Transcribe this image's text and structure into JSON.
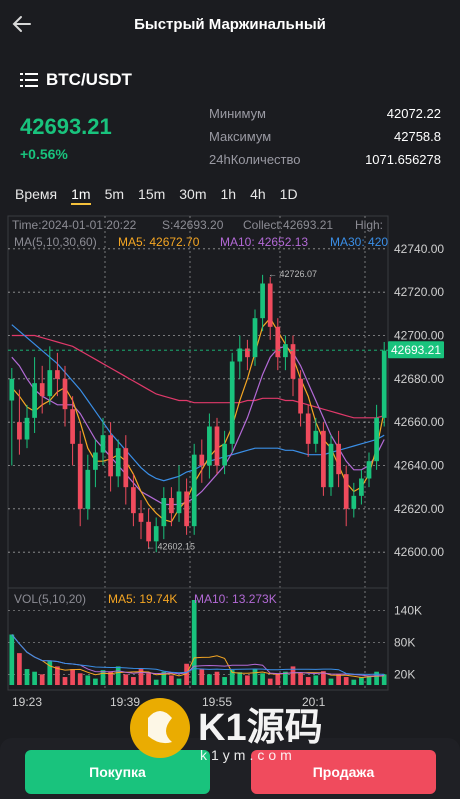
{
  "header": {
    "title": "Быстрый Маржинальный"
  },
  "pair": {
    "name": "BTC/USDT"
  },
  "ticker": {
    "price": "42693.21",
    "change": "+0.56%"
  },
  "stats": [
    {
      "label": "Минимум",
      "value": "42072.22"
    },
    {
      "label": "Максимум",
      "value": "42758.8"
    },
    {
      "label": "24hКоличество",
      "value": "1071.656278"
    }
  ],
  "timeframes": {
    "label": "Время",
    "items": [
      "1m",
      "5m",
      "15m",
      "30m",
      "1h",
      "4h",
      "1D"
    ],
    "active": "1m"
  },
  "info": {
    "time": "Time:2024-01-01 20:22",
    "s": "S:42693.20",
    "collect": "Collect:42693.21",
    "high": "High:"
  },
  "ma": {
    "label": "MA(5,10,30,60)",
    "ma5": "MA5: 42672.70",
    "ma10": "MA10: 42652.13",
    "ma30": "MA30: 420"
  },
  "vol": {
    "label": "VOL(5,10,20)",
    "ma5": "MA5: 19.74K",
    "ma10": "MA10: 13.273K"
  },
  "price_axis": [
    "42740.00",
    "42720.00",
    "42700.00",
    "42680.00",
    "42660.00",
    "42640.00",
    "42620.00",
    "42600.00"
  ],
  "vol_axis": [
    "140K",
    "80K",
    "20K"
  ],
  "time_axis": [
    "19:23",
    "19:39",
    "19:55",
    "20:1"
  ],
  "annotations": {
    "high": "42726.07",
    "low": "42602.15",
    "current": "42693.21"
  },
  "buttons": {
    "buy": "Покупка",
    "sell": "Продажа"
  },
  "watermark": {
    "brand": "K1源码",
    "url": "k1ym.com"
  },
  "colors": {
    "up": "#19c37d",
    "down": "#f04b5d",
    "ma5": "#f5a623",
    "ma10": "#b36ad6",
    "ma30": "#3a8ee6",
    "ma60": "#e0396a"
  },
  "chart_data": {
    "type": "candlestick",
    "price_ylim": [
      42595,
      42745
    ],
    "candles": [
      [
        42670,
        42680,
        42640,
        42685
      ],
      [
        42660,
        42652,
        42645,
        42675
      ],
      [
        42652,
        42662,
        42648,
        42668
      ],
      [
        42662,
        42678,
        42655,
        42690
      ],
      [
        42678,
        42672,
        42664,
        42686
      ],
      [
        42672,
        42684,
        42668,
        42695
      ],
      [
        42684,
        42680,
        42672,
        42692
      ],
      [
        42680,
        42666,
        42658,
        42686
      ],
      [
        42666,
        42650,
        42640,
        42672
      ],
      [
        42650,
        42620,
        42612,
        42656
      ],
      [
        42620,
        42638,
        42615,
        42645
      ],
      [
        42638,
        42646,
        42630,
        42652
      ],
      [
        42646,
        42654,
        42640,
        42662
      ],
      [
        42654,
        42635,
        42628,
        42660
      ],
      [
        42635,
        42648,
        42630,
        42652
      ],
      [
        42648,
        42630,
        42622,
        42654
      ],
      [
        42630,
        42618,
        42612,
        42636
      ],
      [
        42618,
        42614,
        42606,
        42624
      ],
      [
        42614,
        42605,
        42602,
        42620
      ],
      [
        42605,
        42612,
        42600,
        42616
      ],
      [
        42612,
        42625,
        42606,
        42630
      ],
      [
        42625,
        42618,
        42612,
        42630
      ],
      [
        42618,
        42628,
        42614,
        42640
      ],
      [
        42628,
        42612,
        42608,
        42634
      ],
      [
        42612,
        42645,
        42608,
        42650
      ],
      [
        42645,
        42640,
        42632,
        42652
      ],
      [
        42640,
        42658,
        42634,
        42664
      ],
      [
        42658,
        42640,
        42636,
        42662
      ],
      [
        42640,
        42650,
        42636,
        42656
      ],
      [
        42650,
        42688,
        42646,
        42692
      ],
      [
        42688,
        42694,
        42680,
        42700
      ],
      [
        42694,
        42690,
        42684,
        42698
      ],
      [
        42690,
        42708,
        42686,
        42712
      ],
      [
        42708,
        42724,
        42702,
        42728
      ],
      [
        42724,
        42704,
        42698,
        42727
      ],
      [
        42704,
        42690,
        42684,
        42708
      ],
      [
        42690,
        42696,
        42684,
        42700
      ],
      [
        42696,
        42680,
        42672,
        42700
      ],
      [
        42680,
        42664,
        42658,
        42684
      ],
      [
        42664,
        42650,
        42644,
        42668
      ],
      [
        42650,
        42656,
        42646,
        42662
      ],
      [
        42656,
        42630,
        42626,
        42660
      ],
      [
        42630,
        42650,
        42626,
        42654
      ],
      [
        42650,
        42636,
        42630,
        42656
      ],
      [
        42636,
        42620,
        42612,
        42640
      ],
      [
        42620,
        42626,
        42616,
        42632
      ],
      [
        42626,
        42634,
        42622,
        42638
      ],
      [
        42634,
        42642,
        42630,
        42646
      ],
      [
        42642,
        42662,
        42638,
        42668
      ],
      [
        42662,
        42693,
        42658,
        42697
      ]
    ],
    "ma5": [
      42676,
      42672,
      42667,
      42665,
      42668,
      42670,
      42674,
      42676,
      42670,
      42660,
      42648,
      42642,
      42642,
      42643,
      42645,
      42642,
      42636,
      42628,
      42622,
      42618,
      42615,
      42614,
      42620,
      42624,
      42632,
      42638,
      42644,
      42648,
      42650,
      42658,
      42670,
      42680,
      42692,
      42704,
      42708,
      42702,
      42696,
      42690,
      42680,
      42672,
      42660,
      42652,
      42648,
      42640,
      42632,
      42628,
      42630,
      42636,
      42648,
      42665
    ],
    "ma10": [
      42690,
      42686,
      42680,
      42675,
      42672,
      42670,
      42668,
      42668,
      42668,
      42664,
      42658,
      42652,
      42648,
      42644,
      42640,
      42636,
      42632,
      42628,
      42626,
      42624,
      42622,
      42622,
      42622,
      42623,
      42625,
      42628,
      42632,
      42636,
      42640,
      42646,
      42654,
      42662,
      42672,
      42682,
      42690,
      42694,
      42695,
      42692,
      42686,
      42678,
      42670,
      42662,
      42654,
      42648,
      42642,
      42638,
      42638,
      42640,
      42645,
      42652
    ],
    "ma30": [
      42705,
      42702,
      42699,
      42696,
      42693,
      42690,
      42687,
      42683,
      42679,
      42675,
      42670,
      42665,
      42660,
      42655,
      42651,
      42647,
      42643,
      42639,
      42636,
      42634,
      42633,
      42634,
      42635,
      42637,
      42638,
      42640,
      42642,
      42643,
      42644,
      42645,
      42646,
      42647,
      42648,
      42648,
      42648,
      42648,
      42647,
      42647,
      42646,
      42645,
      42645,
      42645,
      42646,
      42647,
      42648,
      42649,
      42650,
      42651,
      42652,
      42654
    ],
    "ma60": [
      42700,
      42700,
      42700,
      42700,
      42699,
      42698,
      42697,
      42696,
      42695,
      42693,
      42691,
      42689,
      42687,
      42685,
      42683,
      42681,
      42679,
      42677,
      42675,
      42673,
      42672,
      42671,
      42670,
      42670,
      42669,
      42669,
      42669,
      42669,
      42669,
      42669,
      42669,
      42670,
      42670,
      42671,
      42671,
      42671,
      42670,
      42670,
      42669,
      42668,
      42667,
      42666,
      42665,
      42664,
      42663,
      42662,
      42662,
      42662,
      42662,
      42663
    ],
    "volumes": [
      95,
      60,
      30,
      25,
      20,
      45,
      35,
      15,
      30,
      22,
      18,
      12,
      28,
      25,
      35,
      20,
      15,
      30,
      22,
      10,
      25,
      18,
      12,
      40,
      160,
      30,
      20,
      25,
      15,
      28,
      24,
      18,
      30,
      22,
      12,
      20,
      25,
      35,
      22,
      15,
      18,
      26,
      12,
      20,
      15,
      10,
      14,
      18,
      25,
      20
    ],
    "vol_ylim": [
      0,
      160
    ]
  }
}
